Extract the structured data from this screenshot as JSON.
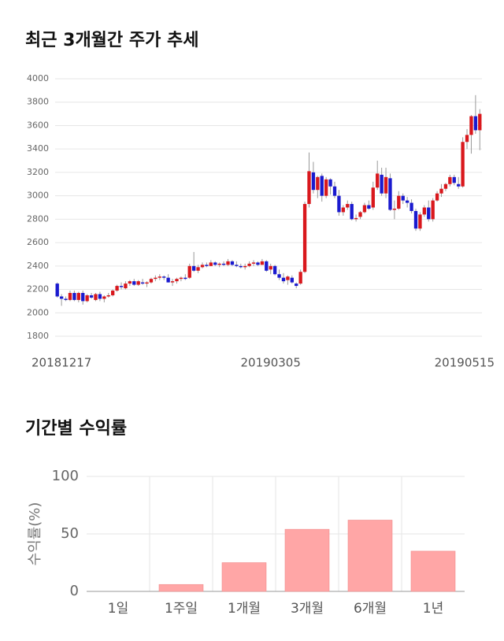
{
  "chart_data": [
    {
      "type": "candlestick",
      "title": "최근 3개월간 주가 추세",
      "categories": [
        "20181217",
        null,
        null,
        null,
        null,
        null,
        null,
        null,
        null,
        null,
        null,
        null,
        null,
        null,
        null,
        null,
        null,
        null,
        null,
        null,
        null,
        null,
        null,
        null,
        null,
        null,
        null,
        null,
        null,
        null,
        null,
        null,
        null,
        null,
        null,
        null,
        null,
        null,
        null,
        null,
        null,
        null,
        null,
        null,
        null,
        null,
        null,
        null,
        null,
        null,
        "20190305",
        null,
        null,
        null,
        null,
        null,
        null,
        null,
        null,
        null,
        null,
        null,
        null,
        null,
        null,
        null,
        null,
        null,
        null,
        null,
        null,
        null,
        null,
        null,
        null,
        null,
        null,
        null,
        null,
        null,
        null,
        null,
        null,
        null,
        null,
        null,
        null,
        null,
        null,
        null,
        null,
        null,
        null,
        null,
        null,
        null,
        null,
        null,
        null,
        "20190515"
      ],
      "open": [
        2250,
        2140,
        2120,
        2110,
        2170,
        2110,
        2170,
        2100,
        2150,
        2110,
        2160,
        2120,
        2140,
        2150,
        2190,
        2230,
        2210,
        2250,
        2270,
        2240,
        2260,
        2250,
        2260,
        2290,
        2300,
        2310,
        2300,
        2260,
        2270,
        2290,
        2300,
        2300,
        2400,
        2360,
        2390,
        2410,
        2400,
        2430,
        2410,
        2420,
        2410,
        2440,
        2410,
        2400,
        2390,
        2400,
        2420,
        2430,
        2410,
        2440,
        2370,
        2400,
        2330,
        2300,
        2280,
        2300,
        2250,
        2250,
        2350,
        2930,
        3200,
        3050,
        3170,
        3000,
        3140,
        3080,
        3000,
        2860,
        2900,
        2930,
        2800,
        2820,
        2860,
        2920,
        2900,
        3070,
        3180,
        3020,
        3150,
        2880,
        2890,
        3000,
        2960,
        2940,
        2870,
        2720,
        2840,
        2900,
        2800,
        2960,
        3020,
        3060,
        3100,
        3160,
        3100,
        3080,
        3460,
        3520,
        3680,
        3560
      ],
      "high": [
        2260,
        2160,
        2140,
        2190,
        2190,
        2180,
        2190,
        2160,
        2170,
        2170,
        2180,
        2150,
        2170,
        2200,
        2240,
        2260,
        2270,
        2280,
        2290,
        2280,
        2290,
        2270,
        2300,
        2320,
        2330,
        2320,
        2330,
        2290,
        2300,
        2310,
        2330,
        2420,
        2520,
        2410,
        2430,
        2430,
        2450,
        2440,
        2430,
        2440,
        2460,
        2450,
        2440,
        2420,
        2420,
        2440,
        2450,
        2440,
        2460,
        2450,
        2420,
        2410,
        2370,
        2340,
        2320,
        2320,
        2260,
        2370,
        2950,
        3370,
        3290,
        3170,
        3190,
        3160,
        3150,
        3120,
        3050,
        2920,
        2960,
        2950,
        2840,
        2870,
        2940,
        2960,
        3120,
        3300,
        3240,
        3240,
        3190,
        2960,
        3040,
        3020,
        2990,
        2970,
        2890,
        2860,
        2920,
        2960,
        2980,
        3040,
        3100,
        3110,
        3180,
        3180,
        3160,
        3500,
        3570,
        3690,
        3860,
        3740
      ],
      "low": [
        2130,
        2060,
        2100,
        2100,
        2100,
        2090,
        2070,
        2090,
        2120,
        2100,
        2100,
        2090,
        2130,
        2140,
        2180,
        2200,
        2200,
        2230,
        2230,
        2230,
        2240,
        2220,
        2250,
        2270,
        2280,
        2280,
        2260,
        2230,
        2250,
        2270,
        2280,
        2290,
        2350,
        2340,
        2380,
        2390,
        2400,
        2400,
        2390,
        2400,
        2400,
        2400,
        2390,
        2380,
        2370,
        2390,
        2400,
        2400,
        2410,
        2350,
        2330,
        2320,
        2280,
        2250,
        2240,
        2250,
        2210,
        2240,
        2340,
        2900,
        3020,
        2980,
        2950,
        2980,
        3010,
        2980,
        2830,
        2830,
        2880,
        2790,
        2780,
        2800,
        2850,
        2880,
        2880,
        3050,
        3000,
        2980,
        2870,
        2800,
        2880,
        2930,
        2900,
        2850,
        2700,
        2700,
        2820,
        2780,
        2780,
        2950,
        2990,
        3040,
        3080,
        3090,
        3060,
        3070,
        3400,
        3360,
        3530,
        3390
      ],
      "close": [
        2140,
        2120,
        2110,
        2170,
        2110,
        2170,
        2100,
        2150,
        2130,
        2160,
        2120,
        2140,
        2150,
        2190,
        2230,
        2220,
        2250,
        2270,
        2240,
        2270,
        2250,
        2260,
        2290,
        2300,
        2310,
        2300,
        2260,
        2270,
        2290,
        2300,
        2290,
        2400,
        2360,
        2390,
        2410,
        2400,
        2430,
        2410,
        2420,
        2410,
        2440,
        2410,
        2400,
        2390,
        2400,
        2420,
        2430,
        2410,
        2440,
        2360,
        2400,
        2330,
        2300,
        2270,
        2310,
        2260,
        2230,
        2350,
        2930,
        3210,
        3050,
        3160,
        3000,
        3140,
        3080,
        3000,
        2860,
        2900,
        2930,
        2800,
        2810,
        2860,
        2920,
        2890,
        3070,
        3190,
        3020,
        3160,
        2880,
        2890,
        3000,
        2960,
        2940,
        2870,
        2720,
        2840,
        2900,
        2800,
        2960,
        3020,
        3060,
        3100,
        3160,
        3110,
        3080,
        3460,
        3520,
        3680,
        3560,
        3700
      ],
      "up_color": "#d9181d",
      "down_color": "#1a1acf",
      "ylim": [
        1800,
        4000
      ],
      "yticks": [
        1800,
        2000,
        2200,
        2400,
        2600,
        2800,
        3000,
        3200,
        3400,
        3600,
        3800,
        4000
      ],
      "grid": true
    },
    {
      "type": "bar",
      "title": "기간별 수익률",
      "ylabel": "수익률(%)",
      "categories": [
        "1일",
        "1주일",
        "1개월",
        "3개월",
        "6개월",
        "1년"
      ],
      "values": [
        0,
        6,
        25,
        54,
        62,
        35
      ],
      "color": "#ffa6a6",
      "ylim": [
        0,
        100
      ],
      "yticks": [
        0,
        50,
        100
      ],
      "grid": true
    }
  ]
}
